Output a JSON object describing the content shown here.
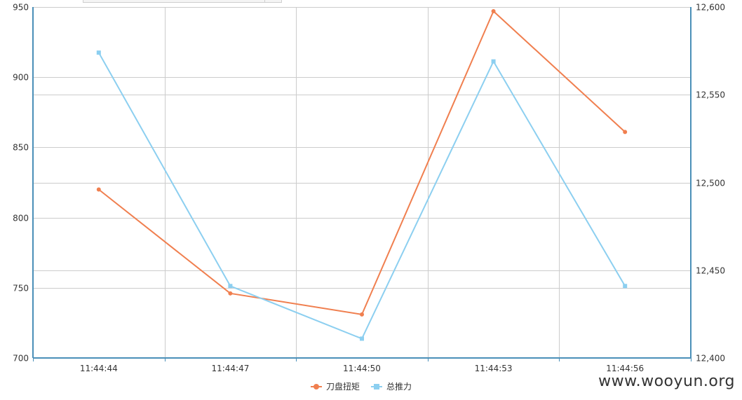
{
  "chart_data": {
    "type": "line",
    "categories": [
      "11:44:44",
      "11:44:47",
      "11:44:50",
      "11:44:53",
      "11:44:56"
    ],
    "series": [
      {
        "name": "刀盘扭矩",
        "axis": "left",
        "color": "#f07f4f",
        "marker": "circle",
        "values": [
          820,
          746,
          731,
          947,
          861
        ]
      },
      {
        "name": "总推力",
        "axis": "right",
        "color": "#8ccff0",
        "marker": "square",
        "values": [
          12574,
          12441,
          12411,
          12569,
          12441
        ]
      }
    ],
    "y_left": {
      "min": 700,
      "max": 950,
      "ticks": [
        "700",
        "750",
        "800",
        "850",
        "900",
        "950"
      ]
    },
    "y_right": {
      "min": 12400,
      "max": 12600,
      "ticks": [
        "12,400",
        "12,450",
        "12,500",
        "12,550",
        "12,600"
      ]
    },
    "grid": true,
    "legend": "bottom-center"
  },
  "watermark": "www.wooyun.org"
}
